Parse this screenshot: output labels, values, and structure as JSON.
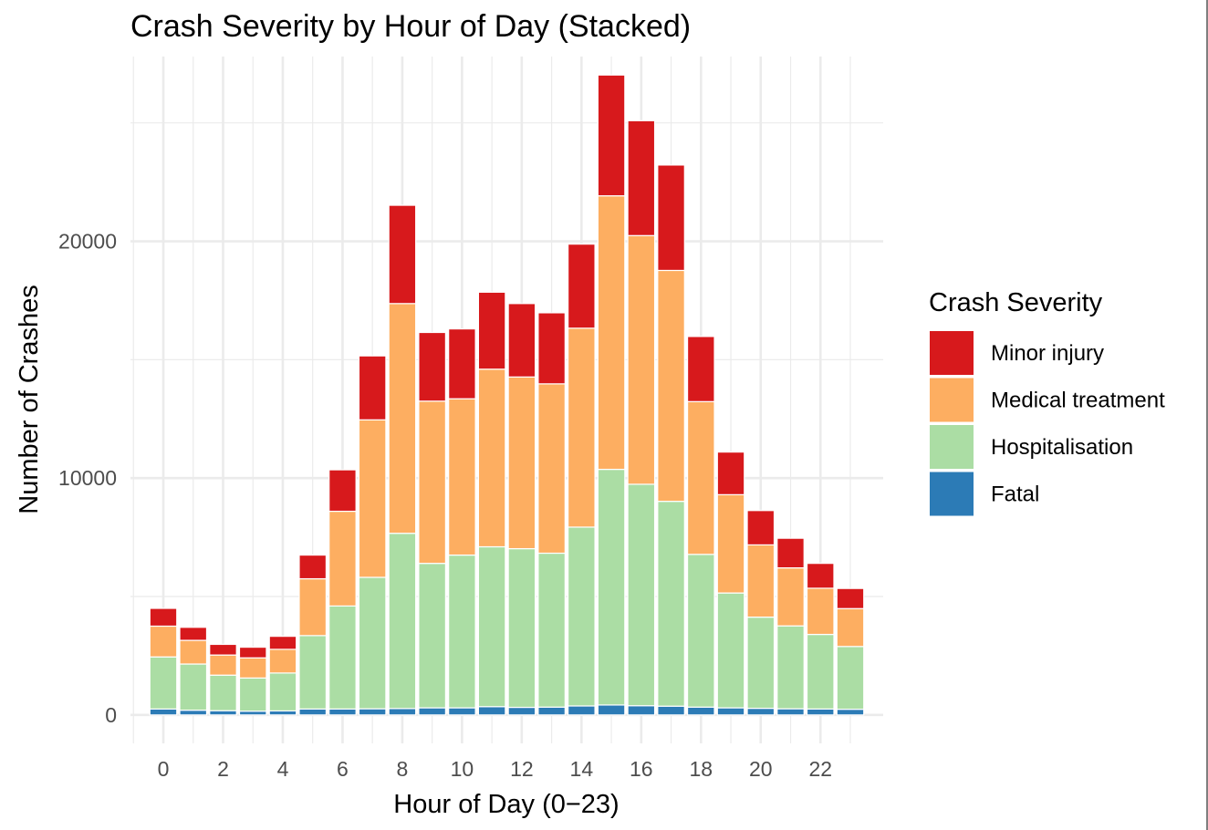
{
  "chart_data": {
    "type": "bar",
    "stacked": true,
    "title": "Crash Severity by Hour of Day (Stacked)",
    "xlabel": "Hour of Day (0−23)",
    "ylabel": "Number of Crashes",
    "x": [
      0,
      1,
      2,
      3,
      4,
      5,
      6,
      7,
      8,
      9,
      10,
      11,
      12,
      13,
      14,
      15,
      16,
      17,
      18,
      19,
      20,
      21,
      22,
      23
    ],
    "x_ticks": [
      0,
      2,
      4,
      6,
      8,
      10,
      12,
      14,
      16,
      18,
      20,
      22
    ],
    "x_tick_labels": [
      "0",
      "2",
      "4",
      "6",
      "8",
      "10",
      "12",
      "14",
      "16",
      "18",
      "20",
      "22"
    ],
    "y_ticks": [
      0,
      10000,
      20000
    ],
    "y_tick_labels": [
      "0",
      "10000",
      "20000"
    ],
    "ylim": [
      -1200,
      27800
    ],
    "xlim": [
      -1.1,
      24.1
    ],
    "grid": true,
    "legend": {
      "title": "Crash Severity",
      "position": "right"
    },
    "series": [
      {
        "name": "Fatal",
        "color": "#2c7bb6",
        "values": [
          250,
          200,
          180,
          160,
          170,
          250,
          250,
          260,
          270,
          300,
          300,
          350,
          320,
          330,
          380,
          420,
          390,
          370,
          330,
          300,
          280,
          260,
          250,
          240
        ]
      },
      {
        "name": "Hospitalisation",
        "color": "#abdda4",
        "values": [
          2200,
          1950,
          1500,
          1400,
          1600,
          3100,
          4350,
          5550,
          7400,
          6100,
          6450,
          6750,
          6700,
          6500,
          7550,
          9950,
          9350,
          8650,
          6450,
          4850,
          3850,
          3500,
          3150,
          2650
        ]
      },
      {
        "name": "Medical treatment",
        "color": "#fdae61",
        "values": [
          1300,
          1000,
          850,
          850,
          1000,
          2400,
          4000,
          6650,
          9700,
          6850,
          6600,
          7500,
          7250,
          7150,
          8400,
          11550,
          10500,
          9750,
          6450,
          4150,
          3050,
          2450,
          1950,
          1600
        ]
      },
      {
        "name": "Minor injury",
        "color": "#d7191c",
        "values": [
          750,
          550,
          450,
          450,
          550,
          1000,
          1750,
          2700,
          4150,
          2900,
          2950,
          3250,
          3100,
          3000,
          3550,
          5100,
          4850,
          4450,
          2750,
          1800,
          1450,
          1250,
          1050,
          850
        ]
      }
    ],
    "legend_order": [
      "Minor injury",
      "Medical treatment",
      "Hospitalisation",
      "Fatal"
    ]
  }
}
